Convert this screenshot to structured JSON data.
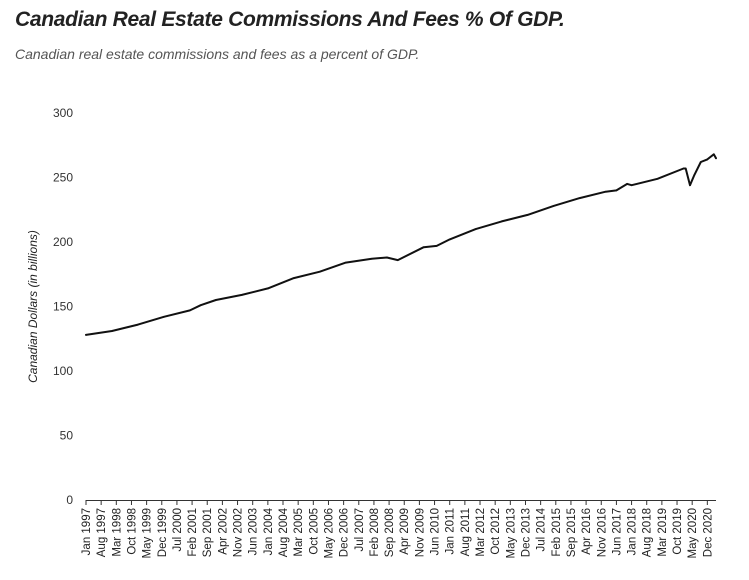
{
  "chart_data": {
    "type": "line",
    "title": "Canadian Real Estate Commissions And Fees % Of GDP.",
    "subtitle": "Canadian real estate commissions and fees as a percent of GDP.",
    "ylabel": "Canadian Dollars (in billions)",
    "xlabel": "",
    "ylim": [
      0,
      300
    ],
    "y_ticks": [
      0,
      50,
      100,
      150,
      200,
      250,
      300
    ],
    "grid": false,
    "legend": "none",
    "line_color": "#111111",
    "x_tick_labels": [
      "Jan 1997",
      "Aug 1997",
      "Mar 1998",
      "Oct 1998",
      "May 1999",
      "Dec 1999",
      "Jul 2000",
      "Feb 2001",
      "Sep 2001",
      "Apr 2002",
      "Nov 2002",
      "Jun 2003",
      "Jan 2004",
      "Aug 2004",
      "Mar 2005",
      "Oct 2005",
      "May 2006",
      "Dec 2006",
      "Jul 2007",
      "Feb 2008",
      "Sep 2008",
      "Apr 2009",
      "Nov 2009",
      "Jun 2010",
      "Jan 2011",
      "Aug 2011",
      "Mar 2012",
      "Oct 2012",
      "May 2013",
      "Dec 2013",
      "Jul 2014",
      "Feb 2015",
      "Sep 2015",
      "Apr 2016",
      "Nov 2016",
      "Jun 2017",
      "Jan 2018",
      "Aug 2018",
      "Mar 2019",
      "Oct 2019",
      "May 2020",
      "Dec 2020"
    ],
    "x": [
      "Jan 1997",
      "Jan 1998",
      "Jan 1999",
      "Jan 2000",
      "Jan 2001",
      "Jun 2001",
      "Jan 2002",
      "Jan 2003",
      "Jan 2004",
      "Jan 2005",
      "Jan 2006",
      "Jan 2007",
      "Jan 2008",
      "Aug 2008",
      "Jan 2009",
      "Jan 2010",
      "Jul 2010",
      "Jan 2011",
      "Jan 2012",
      "Jan 2013",
      "Jan 2014",
      "Jan 2015",
      "Jan 2016",
      "Jan 2017",
      "Jun 2017",
      "Nov 2017",
      "Jan 2018",
      "Jan 2019",
      "Jan 2020",
      "Feb 2020",
      "Apr 2020",
      "Jun 2020",
      "Sep 2020",
      "Dec 2020",
      "Mar 2021",
      "Apr 2021"
    ],
    "values": [
      128,
      131,
      136,
      142,
      147,
      151,
      155,
      159,
      164,
      172,
      177,
      184,
      187,
      188,
      186,
      196,
      197,
      202,
      210,
      216,
      221,
      228,
      234,
      239,
      240,
      245,
      244,
      249,
      257,
      257,
      244,
      252,
      262,
      264,
      268,
      265
    ]
  }
}
